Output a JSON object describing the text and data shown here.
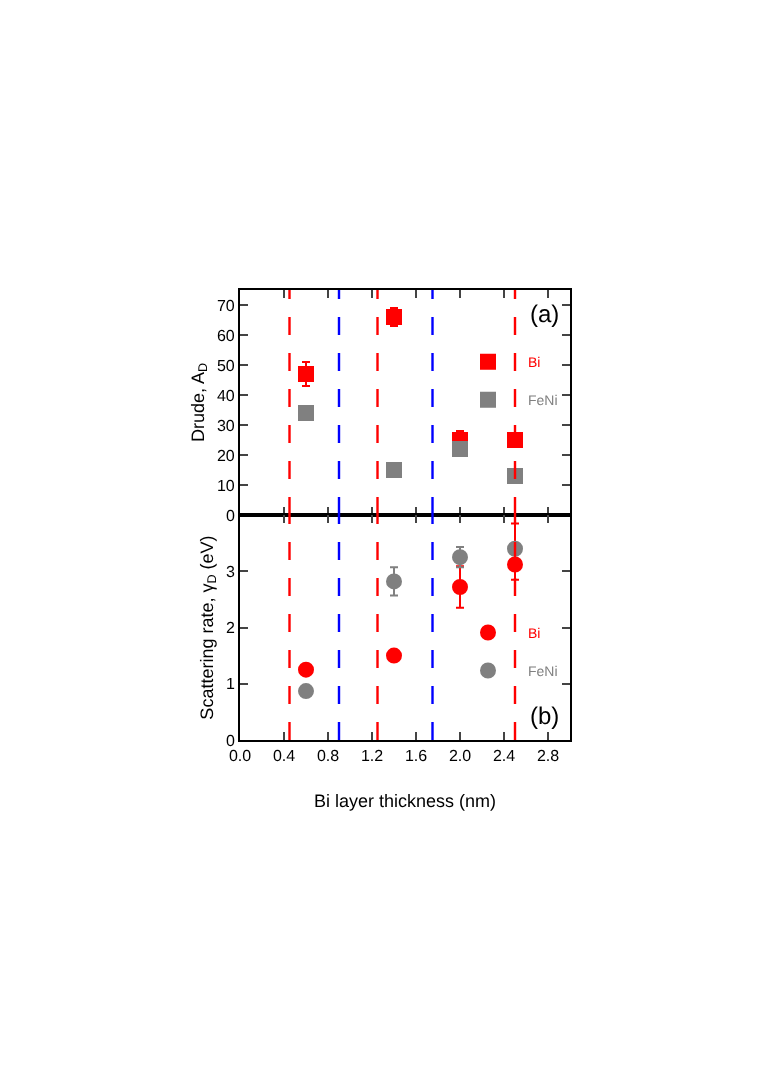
{
  "chart_data": [
    {
      "type": "scatter",
      "ylabel": "Drude, A$_{D}$",
      "x": [
        0.6,
        1.4,
        2.0,
        2.5
      ],
      "xlim": [
        0,
        3.0
      ],
      "ylim": [
        0,
        75
      ],
      "yticks": [
        0,
        10,
        20,
        30,
        40,
        50,
        60,
        70
      ],
      "tick_labels": "y",
      "marker": "square",
      "legend": "top right",
      "grid": false,
      "annotations": [
        "(a)"
      ],
      "series": [
        {
          "name": "Bi",
          "color": "#ff0000",
          "values": [
            47,
            66,
            25,
            25
          ],
          "errors": [
            4,
            3,
            3,
            null
          ]
        },
        {
          "name": "FeNi",
          "color": "#808080",
          "values": [
            34,
            15,
            22,
            13
          ],
          "errors": [
            null,
            null,
            null,
            null
          ]
        }
      ],
      "ref_lines": [
        {
          "axis": "x",
          "value": 0.45,
          "color": "#ff0000",
          "line_style": "dashed"
        },
        {
          "axis": "x",
          "value": 0.9,
          "color": "#0000ff",
          "line_style": "dashed"
        },
        {
          "axis": "x",
          "value": 1.25,
          "color": "#ff0000",
          "line_style": "dashed"
        },
        {
          "axis": "x",
          "value": 1.75,
          "color": "#0000ff",
          "line_style": "dashed"
        },
        {
          "axis": "x",
          "value": 2.5,
          "color": "#ff0000",
          "line_style": "dashed"
        }
      ]
    },
    {
      "type": "scatter",
      "xlabel": "Bi layer thickness (nm)",
      "ylabel": "Scattering rate, γ$_{D}$ (eV)",
      "x": [
        0.6,
        1.4,
        2.0,
        2.5
      ],
      "xlim": [
        0,
        3.0
      ],
      "xticks": [
        {
          "value": 0,
          "label": "0.0"
        },
        0.4,
        0.8,
        1.2,
        1.6,
        {
          "value": 2,
          "label": "2.0"
        },
        2.4,
        2.8
      ],
      "ylim": [
        0,
        4
      ],
      "yticks": [
        0,
        1,
        2,
        3
      ],
      "marker": "circle",
      "legend": "bottom right",
      "grid": false,
      "annotations": [
        "(b)"
      ],
      "series": [
        {
          "name": "Bi",
          "color": "#ff0000",
          "values": [
            1.25,
            1.5,
            2.72,
            3.12
          ],
          "errors": [
            null,
            null,
            0.37,
            [
              2.85,
              3.85
            ]
          ]
        },
        {
          "name": "FeNi",
          "color": "#808080",
          "values": [
            0.87,
            2.82,
            3.25,
            3.4
          ],
          "errors": [
            null,
            0.25,
            0.18,
            null
          ]
        }
      ],
      "ref_lines": [
        {
          "axis": "x",
          "value": 0.45,
          "color": "#ff0000",
          "line_style": "dashed"
        },
        {
          "axis": "x",
          "value": 0.9,
          "color": "#0000ff",
          "line_style": "dashed"
        },
        {
          "axis": "x",
          "value": 1.25,
          "color": "#ff0000",
          "line_style": "dashed"
        },
        {
          "axis": "x",
          "value": 1.75,
          "color": "#0000ff",
          "line_style": "dashed"
        },
        {
          "axis": "x",
          "value": 2.5,
          "color": "#ff0000",
          "line_style": "dashed"
        }
      ]
    }
  ]
}
